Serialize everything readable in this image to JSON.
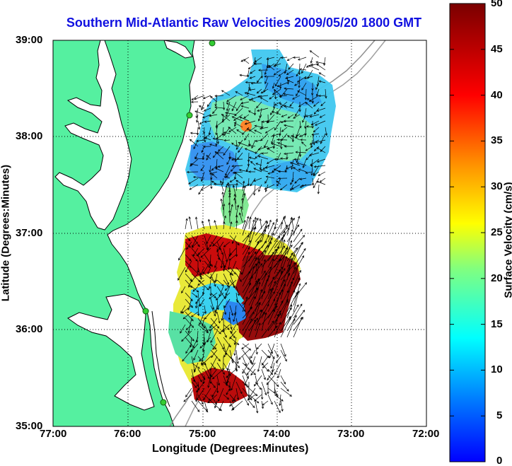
{
  "title": "Southern Mid-Atlantic Raw Velocities 2009/05/20 1800 GMT",
  "axes": {
    "xlabel": "Longitude (Degrees:Minutes)",
    "ylabel": "Latitude (Degrees:Minutes)",
    "x_ticks": [
      "77:00",
      "76:00",
      "75:00",
      "74:00",
      "73:00",
      "72:00"
    ],
    "y_ticks": [
      "39:00",
      "38:00",
      "37:00",
      "36:00",
      "35:00"
    ]
  },
  "colorbar": {
    "label": "Surface Velocity (cm/s)",
    "ticks": [
      "50",
      "45",
      "40",
      "35",
      "30",
      "25",
      "20",
      "15",
      "10",
      "5",
      "0"
    ],
    "min": 0,
    "max": 50,
    "colormap": [
      "#0000ff",
      "#00a0ff",
      "#00ffff",
      "#80ff80",
      "#ffff00",
      "#ff8000",
      "#ff0000",
      "#800000"
    ]
  },
  "colors": {
    "land": "#55f0a0",
    "coastline": "#000000",
    "ocean": "#ffffff",
    "bathymetry": "#909090",
    "station": "#33cc33",
    "title_color": "#1010e0"
  },
  "chart_data": {
    "type": "heatmap",
    "title": "Southern Mid-Atlantic Raw Velocities 2009/05/20 1800 GMT",
    "xlabel": "Longitude (Degrees:Minutes)",
    "ylabel": "Latitude (Degrees:Minutes)",
    "xlim": [
      -77,
      -72
    ],
    "ylim": [
      35,
      39
    ],
    "clim": [
      0,
      50
    ],
    "units": "cm/s",
    "grid": true,
    "regions": [
      {
        "lon": -74.6,
        "lat": 38.4,
        "speed": 12
      },
      {
        "lon": -74.2,
        "lat": 37.9,
        "speed": 14
      },
      {
        "lon": -74.7,
        "lat": 37.7,
        "speed": 8
      },
      {
        "lon": -74.6,
        "lat": 38.1,
        "speed": 33
      },
      {
        "lon": -74.7,
        "lat": 37.2,
        "speed": 18
      },
      {
        "lon": -75.0,
        "lat": 36.7,
        "speed": 45
      },
      {
        "lon": -74.2,
        "lat": 36.4,
        "speed": 50
      },
      {
        "lon": -75.2,
        "lat": 36.2,
        "speed": 22
      },
      {
        "lon": -74.8,
        "lat": 36.0,
        "speed": 12
      },
      {
        "lon": -74.8,
        "lat": 35.4,
        "speed": 48
      }
    ]
  }
}
